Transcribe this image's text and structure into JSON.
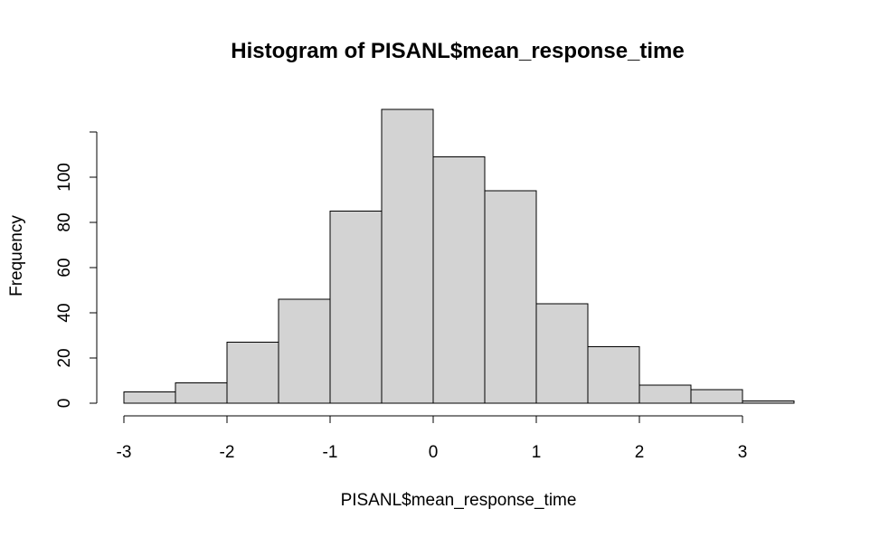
{
  "chart_data": {
    "type": "bar",
    "title": "Histogram of PISANL$mean_response_time",
    "xlabel": "PISANL$mean_response_time",
    "ylabel": "Frequency",
    "bins": [
      {
        "start": -3.0,
        "end": -2.5,
        "count": 5
      },
      {
        "start": -2.5,
        "end": -2.0,
        "count": 9
      },
      {
        "start": -2.0,
        "end": -1.5,
        "count": 27
      },
      {
        "start": -1.5,
        "end": -1.0,
        "count": 46
      },
      {
        "start": -1.0,
        "end": -0.5,
        "count": 85
      },
      {
        "start": -0.5,
        "end": 0.0,
        "count": 130
      },
      {
        "start": 0.0,
        "end": 0.5,
        "count": 109
      },
      {
        "start": 0.5,
        "end": 1.0,
        "count": 94
      },
      {
        "start": 1.0,
        "end": 1.5,
        "count": 44
      },
      {
        "start": 1.5,
        "end": 2.0,
        "count": 25
      },
      {
        "start": 2.0,
        "end": 2.5,
        "count": 8
      },
      {
        "start": 2.5,
        "end": 3.0,
        "count": 6
      },
      {
        "start": 3.0,
        "end": 3.5,
        "count": 1
      }
    ],
    "xticks": [
      -3,
      -2,
      -1,
      0,
      1,
      2,
      3
    ],
    "xtick_labels": [
      "-3",
      "-2",
      "-1",
      "0",
      "1",
      "2",
      "3"
    ],
    "yticks": [
      0,
      20,
      40,
      60,
      80,
      100,
      120
    ],
    "ytick_labels": [
      "0",
      "20",
      "40",
      "60",
      "80",
      "100",
      ""
    ],
    "xlim": [
      -3,
      3.5
    ],
    "ylim": [
      0,
      130
    ],
    "grid": false,
    "colors": {
      "bar_fill": "#d3d3d3",
      "bar_stroke": "#000000"
    }
  }
}
